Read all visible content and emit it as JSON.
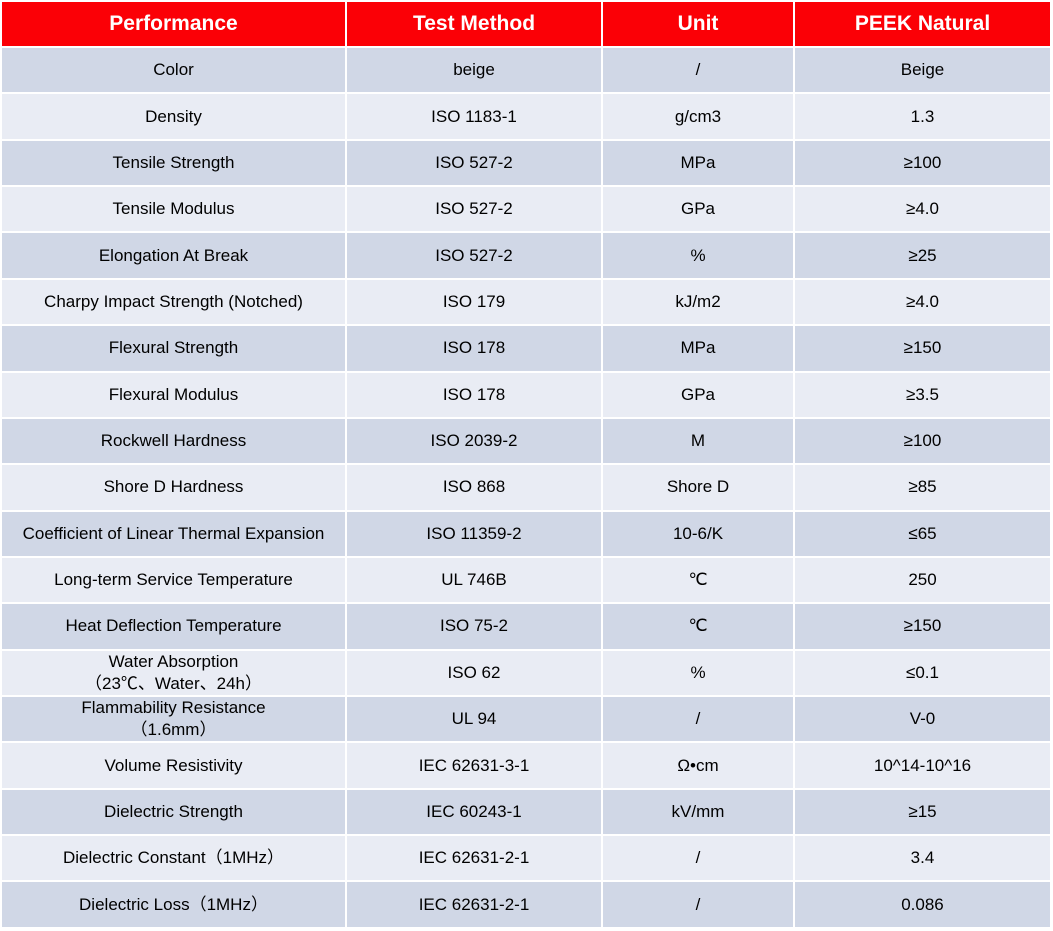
{
  "table": {
    "headers": [
      "Performance",
      "Test Method",
      "Unit",
      "PEEK Natural"
    ],
    "rows": [
      {
        "performance": [
          "Color"
        ],
        "method": "beige",
        "unit": "/",
        "value": "Beige"
      },
      {
        "performance": [
          "Density"
        ],
        "method": "ISO 1183-1",
        "unit": "g/cm3",
        "value": "1.3"
      },
      {
        "performance": [
          "Tensile Strength"
        ],
        "method": "ISO 527-2",
        "unit": "MPa",
        "value": "≥100"
      },
      {
        "performance": [
          "Tensile Modulus"
        ],
        "method": "ISO 527-2",
        "unit": "GPa",
        "value": "≥4.0"
      },
      {
        "performance": [
          "Elongation At Break"
        ],
        "method": "ISO 527-2",
        "unit": "%",
        "value": "≥25"
      },
      {
        "performance": [
          "Charpy Impact Strength (Notched)"
        ],
        "method": "ISO 179",
        "unit": "kJ/m2",
        "value": "≥4.0"
      },
      {
        "performance": [
          "Flexural Strength"
        ],
        "method": "ISO 178",
        "unit": "MPa",
        "value": "≥150"
      },
      {
        "performance": [
          "Flexural Modulus"
        ],
        "method": "ISO 178",
        "unit": "GPa",
        "value": "≥3.5"
      },
      {
        "performance": [
          "Rockwell Hardness"
        ],
        "method": "ISO 2039-2",
        "unit": "M",
        "value": "≥100"
      },
      {
        "performance": [
          "Shore D Hardness"
        ],
        "method": "ISO 868",
        "unit": "Shore D",
        "value": "≥85"
      },
      {
        "performance": [
          "Coefficient of Linear Thermal Expansion"
        ],
        "method": "ISO 11359-2",
        "unit": "10-6/K",
        "value": "≤65"
      },
      {
        "performance": [
          "Long-term Service Temperature"
        ],
        "method": "UL 746B",
        "unit": "℃",
        "value": "250"
      },
      {
        "performance": [
          "Heat Deflection Temperature"
        ],
        "method": "ISO 75-2",
        "unit": "℃",
        "value": "≥150"
      },
      {
        "performance": [
          "Water Absorption",
          "（23℃、Water、24h）"
        ],
        "method": "ISO 62",
        "unit": "%",
        "value": "≤0.1"
      },
      {
        "performance": [
          "Flammability Resistance",
          "（1.6mm）"
        ],
        "method": "UL 94",
        "unit": "/",
        "value": "V-0"
      },
      {
        "performance": [
          "Volume Resistivity"
        ],
        "method": "IEC 62631-3-1",
        "unit": "Ω•cm",
        "value": "10^14-10^16"
      },
      {
        "performance": [
          "Dielectric Strength"
        ],
        "method": "IEC 60243-1",
        "unit": "kV/mm",
        "value": "≥15"
      },
      {
        "performance": [
          "Dielectric Constant（1MHz）"
        ],
        "method": "IEC 62631-2-1",
        "unit": "/",
        "value": "3.4"
      },
      {
        "performance": [
          "Dielectric Loss（1MHz）"
        ],
        "method": "IEC 62631-2-1",
        "unit": "/",
        "value": "0.086"
      }
    ]
  },
  "colors": {
    "header_bg": "#fb0006",
    "header_text": "#ffffff",
    "row_odd": "#d0d7e6",
    "row_even": "#e9ecf4"
  }
}
